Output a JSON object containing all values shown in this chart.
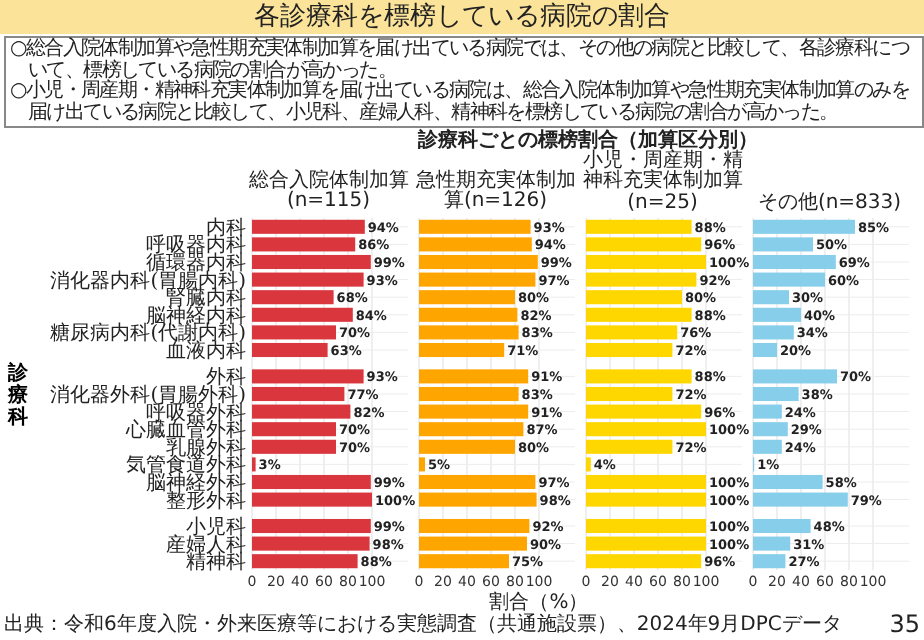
{
  "chart_data": [
    {
      "type": "other",
      "title": "各診療科を標榜している病院の割合",
      "subtitle": "診療科ごとの標榜割合（加算区分別）",
      "annotations": [
        "○総合入院体制加算や急性期充実体制加算を届け出ている病院では、その他の病院と比較して、各診療科について、標榜している病院の割合が高かった。",
        "○小児・周産期・精神科充実体制加算を届け出ている病院は、総合入院体制加算や急性期充実体制加算のみを届け出ている病院と比較して、小児科、産婦人科、精神科を標榜している病院の割合が高かった。",
        "出典：令和6年度入院・外来医療等における実態調査（共通施設票）、2024年9月DPCデータ",
        "35"
      ]
    },
    {
      "type": "bar",
      "orientation": "horizontal",
      "title": "総合入院体制加算(n=115)",
      "ylabel": "診療科",
      "categories": [
        "内科",
        "呼吸器内科",
        "循環器内科",
        "消化器内科(胃腸内科)",
        "腎臓内科",
        "脳神経内科",
        "糖尿病内科(代謝内科)",
        "血液内科",
        null,
        "外科",
        "消化器外科(胃腸外科)",
        "呼吸器外科",
        "心臓血管外科",
        "乳腺外科",
        "気管食道外科",
        "脳神経外科",
        "整形外科",
        null,
        "小児科",
        "産婦人科",
        "精神科"
      ],
      "xlim": [
        0,
        100
      ],
      "xticks": [
        0,
        20,
        40,
        60,
        80,
        100
      ],
      "grid": true,
      "series": [
        {
          "color": "#d9363e",
          "values": [
            94,
            86,
            99,
            93,
            68,
            84,
            70,
            63,
            null,
            93,
            77,
            82,
            70,
            70,
            3,
            99,
            100,
            null,
            99,
            98,
            88
          ]
        }
      ],
      "value_labels": [
        "94%",
        "86%",
        "99%",
        "93%",
        "68%",
        "84%",
        "70%",
        "63%",
        null,
        "93%",
        "77%",
        "82%",
        "70%",
        "70%",
        "3%",
        "99%",
        "100%",
        null,
        "99%",
        "98%",
        "88%"
      ]
    },
    {
      "type": "bar",
      "orientation": "horizontal",
      "title": "急性期充実体制加算(n=126)",
      "xlabel": "割合（%）",
      "tick_labels": "x",
      "categories": [
        "内科",
        "呼吸器内科",
        "循環器内科",
        "消化器内科(胃腸内科)",
        "腎臓内科",
        "脳神経内科",
        "糖尿病内科(代謝内科)",
        "血液内科",
        null,
        "外科",
        "消化器外科(胃腸外科)",
        "呼吸器外科",
        "心臓血管外科",
        "乳腺外科",
        "気管食道外科",
        "脳神経外科",
        "整形外科",
        null,
        "小児科",
        "産婦人科",
        "精神科"
      ],
      "xlim": [
        0,
        100
      ],
      "xticks": [
        0,
        20,
        40,
        60,
        80,
        100
      ],
      "grid": true,
      "series": [
        {
          "color": "#ffa500",
          "values": [
            93,
            94,
            99,
            97,
            80,
            82,
            83,
            71,
            null,
            91,
            83,
            91,
            87,
            80,
            5,
            97,
            98,
            null,
            92,
            90,
            75
          ]
        }
      ],
      "value_labels": [
        "93%",
        "94%",
        "99%",
        "97%",
        "80%",
        "82%",
        "83%",
        "71%",
        null,
        "91%",
        "83%",
        "91%",
        "87%",
        "80%",
        "5%",
        "97%",
        "98%",
        null,
        "92%",
        "90%",
        "75%"
      ]
    },
    {
      "type": "bar",
      "orientation": "horizontal",
      "title": "小児・周産期・精神科充実体制加算(n=25)",
      "tick_labels": "x",
      "categories": [
        "内科",
        "呼吸器内科",
        "循環器内科",
        "消化器内科(胃腸内科)",
        "腎臓内科",
        "脳神経内科",
        "糖尿病内科(代謝内科)",
        "血液内科",
        null,
        "外科",
        "消化器外科(胃腸外科)",
        "呼吸器外科",
        "心臓血管外科",
        "乳腺外科",
        "気管食道外科",
        "脳神経外科",
        "整形外科",
        null,
        "小児科",
        "産婦人科",
        "精神科"
      ],
      "xlim": [
        0,
        100
      ],
      "xticks": [
        0,
        20,
        40,
        60,
        80,
        100
      ],
      "grid": true,
      "series": [
        {
          "color": "#ffd700",
          "values": [
            88,
            96,
            100,
            92,
            80,
            88,
            76,
            72,
            null,
            88,
            72,
            96,
            100,
            72,
            4,
            100,
            100,
            null,
            100,
            100,
            96
          ]
        }
      ],
      "value_labels": [
        "88%",
        "96%",
        "100%",
        "92%",
        "80%",
        "88%",
        "76%",
        "72%",
        null,
        "88%",
        "72%",
        "96%",
        "100%",
        "72%",
        "4%",
        "100%",
        "100%",
        null,
        "100%",
        "100%",
        "96%"
      ]
    },
    {
      "type": "bar",
      "orientation": "horizontal",
      "title": "その他(n=833)",
      "tick_labels": "x",
      "categories": [
        "内科",
        "呼吸器内科",
        "循環器内科",
        "消化器内科(胃腸内科)",
        "腎臓内科",
        "脳神経内科",
        "糖尿病内科(代謝内科)",
        "血液内科",
        null,
        "外科",
        "消化器外科(胃腸外科)",
        "呼吸器外科",
        "心臓血管外科",
        "乳腺外科",
        "気管食道外科",
        "脳神経外科",
        "整形外科",
        null,
        "小児科",
        "産婦人科",
        "精神科"
      ],
      "xlim": [
        0,
        100
      ],
      "xticks": [
        0,
        20,
        40,
        60,
        80,
        100
      ],
      "grid": true,
      "series": [
        {
          "color": "#87ceeb",
          "values": [
            85,
            50,
            69,
            60,
            30,
            40,
            34,
            20,
            null,
            70,
            38,
            24,
            29,
            24,
            1,
            58,
            79,
            null,
            48,
            31,
            27
          ]
        }
      ],
      "value_labels": [
        "85%",
        "50%",
        "69%",
        "60%",
        "30%",
        "40%",
        "34%",
        "20%",
        null,
        "70%",
        "38%",
        "24%",
        "29%",
        "24%",
        "1%",
        "58%",
        "79%",
        null,
        "48%",
        "31%",
        "27%"
      ]
    }
  ]
}
